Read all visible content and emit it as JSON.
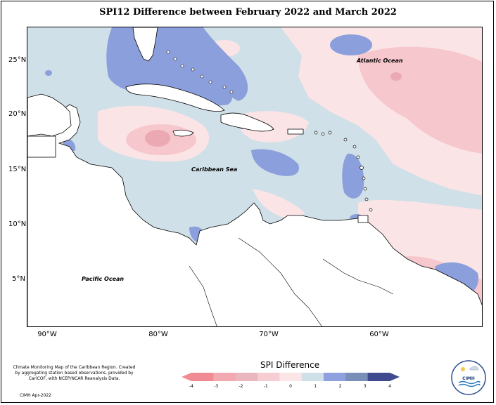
{
  "title": "SPI12 Difference between February 2022 and March 2022",
  "map": {
    "lat_labels": [
      "25°N",
      "20°N",
      "15°N",
      "10°N",
      "5°N"
    ],
    "lon_labels": [
      "90°W",
      "80°W",
      "70°W",
      "60°W"
    ],
    "place_labels": {
      "atlantic": "Atlantic Ocean",
      "caribbean": "Caribbean Sea",
      "pacific": "Pacific Ocean"
    },
    "colors": {
      "water_light_blue": "#cfe0e8",
      "light_pink": "#fbe4e6",
      "pink": "#f6c7cd",
      "medium_pink": "#eaa9b3",
      "blue": "#8b9fdc",
      "land": "#ffffff"
    }
  },
  "legend": {
    "title": "SPI Difference",
    "ticks": [
      "-4",
      "-3",
      "-2",
      "-1",
      "0",
      "1",
      "2",
      "3",
      "4"
    ],
    "colors": [
      "#f08a93",
      "#f3a9b0",
      "#e9b7bd",
      "#f6cdd3",
      "#fbe5e7",
      "#cfe0e8",
      "#8fa0de",
      "#7a8fb7",
      "#3f4a8f"
    ]
  },
  "credit": {
    "text": "Climate Monitoring Map of the Caribbean Region. Created by aggregating station based observations, provided by CariCOF, with NCEP/NCAR Reanalysis Data.",
    "date": "CIMH Apr-2022"
  },
  "logo": {
    "text": "CIMH"
  }
}
